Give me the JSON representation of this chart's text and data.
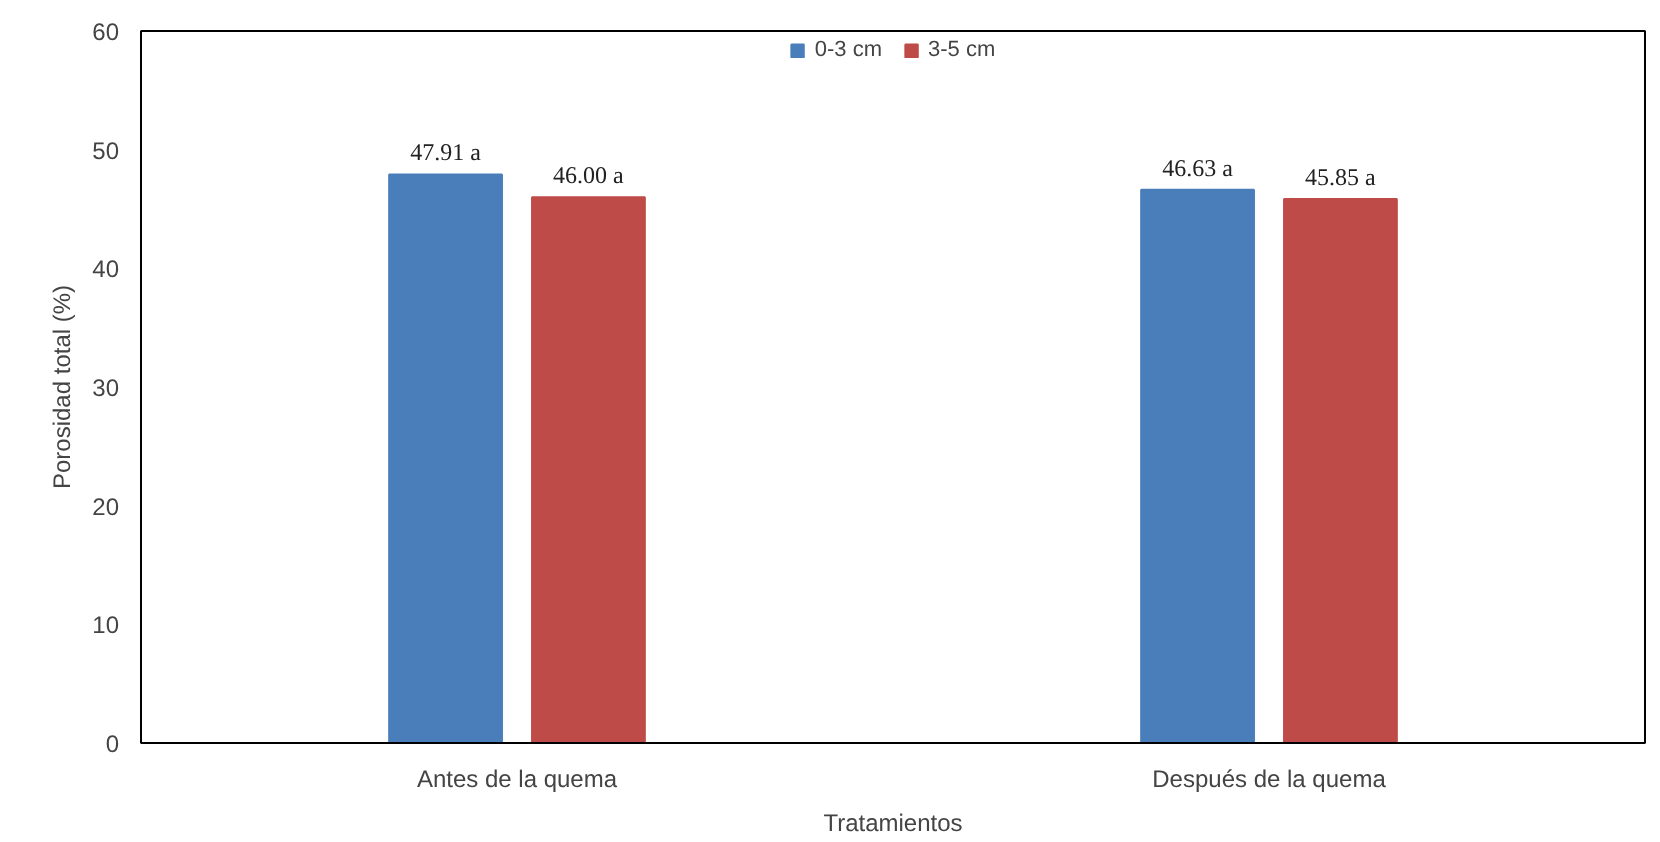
{
  "chart_data": {
    "type": "bar",
    "xlabel": "Tratamientos",
    "ylabel": "Porosidad total (%)",
    "categories": [
      "Antes de la quema",
      "Después de la quema"
    ],
    "series": [
      {
        "name": "0-3 cm",
        "color": "#4a7ebb",
        "values": [
          47.91,
          46.63
        ],
        "value_labels": [
          "47.91 a",
          "46.63 a"
        ]
      },
      {
        "name": "3-5 cm",
        "color": "#be4b48",
        "values": [
          46.0,
          45.85
        ],
        "value_labels": [
          "46.00 a",
          "45.85 a"
        ]
      }
    ],
    "ylim": [
      0,
      60
    ],
    "yticks": [
      0,
      10,
      20,
      30,
      40,
      50,
      60
    ],
    "grid": false,
    "legend": "top"
  }
}
